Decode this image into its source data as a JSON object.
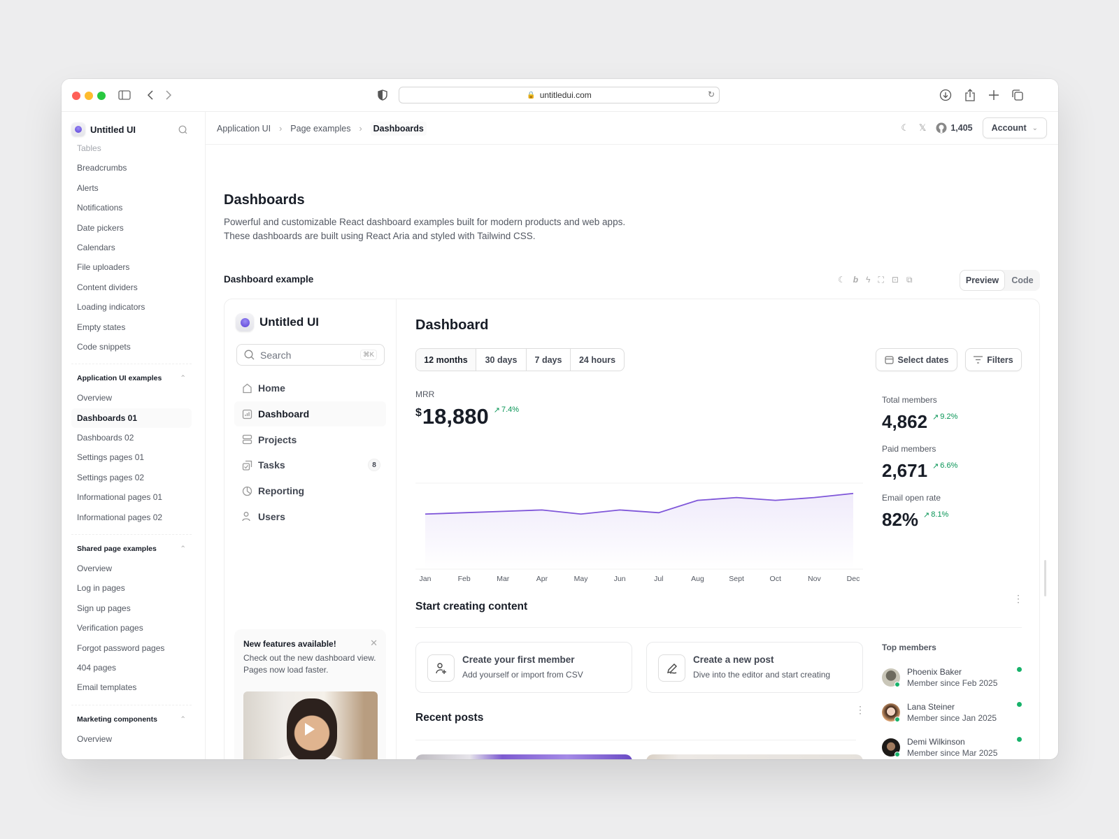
{
  "browser": {
    "url": "untitledui.com"
  },
  "sidebar": {
    "brand": "Untitled UI",
    "items": [
      "Tables",
      "Breadcrumbs",
      "Alerts",
      "Notifications",
      "Date pickers",
      "Calendars",
      "File uploaders",
      "Content dividers",
      "Loading indicators",
      "Empty states",
      "Code snippets"
    ],
    "sections": [
      {
        "title": "Application UI examples",
        "items": [
          "Overview",
          "Dashboards 01",
          "Dashboards 02",
          "Settings pages 01",
          "Settings pages 02",
          "Informational pages 01",
          "Informational pages 02"
        ],
        "active": "Dashboards 01"
      },
      {
        "title": "Shared page examples",
        "items": [
          "Overview",
          "Log in pages",
          "Sign up pages",
          "Verification pages",
          "Forgot password pages",
          "404 pages",
          "Email templates"
        ]
      },
      {
        "title": "Marketing components",
        "items": [
          "Overview"
        ]
      }
    ]
  },
  "breadcrumb": [
    "Application UI",
    "Page examples",
    "Dashboards"
  ],
  "header": {
    "github_stars": "1,405",
    "account_label": "Account"
  },
  "page": {
    "title": "Dashboards",
    "description_1": "Powerful and customizable React dashboard examples built for modern products and web apps.",
    "description_2": "These dashboards are built using React Aria and styled with Tailwind CSS.",
    "example_label": "Dashboard example",
    "preview_label": "Preview",
    "code_label": "Code"
  },
  "demo": {
    "brand": "Untitled UI",
    "search_placeholder": "Search",
    "search_shortcut": "⌘K",
    "nav": [
      {
        "label": "Home",
        "icon": "home-icon"
      },
      {
        "label": "Dashboard",
        "icon": "bar-chart-icon",
        "active": true
      },
      {
        "label": "Projects",
        "icon": "layers-icon"
      },
      {
        "label": "Tasks",
        "icon": "check-square-icon",
        "badge": "8"
      },
      {
        "label": "Reporting",
        "icon": "pie-chart-icon"
      },
      {
        "label": "Users",
        "icon": "users-icon"
      }
    ],
    "feature_card": {
      "title": "New features available!",
      "text": "Check out the new dashboard view. Pages now load faster."
    },
    "title": "Dashboard",
    "ranges": [
      "12 months",
      "30 days",
      "7 days",
      "24 hours"
    ],
    "selected_range": "12 months",
    "select_dates_label": "Select dates",
    "filters_label": "Filters",
    "mrr": {
      "label": "MRR",
      "currency": "$",
      "value": "18,880",
      "delta": "7.4%"
    },
    "stats": [
      {
        "label": "Total members",
        "value": "4,862",
        "delta": "9.2%"
      },
      {
        "label": "Paid members",
        "value": "2,671",
        "delta": "6.6%"
      },
      {
        "label": "Email open rate",
        "value": "82%",
        "delta": "8.1%"
      }
    ],
    "start_title": "Start creating content",
    "actions": [
      {
        "title": "Create your first member",
        "desc": "Add yourself or import from CSV",
        "icon": "user-plus-icon"
      },
      {
        "title": "Create a new post",
        "desc": "Dive into the editor and start creating",
        "icon": "pen-icon"
      }
    ],
    "top_members_title": "Top members",
    "members": [
      {
        "name": "Phoenix Baker",
        "since": "Member since Feb 2025"
      },
      {
        "name": "Lana Steiner",
        "since": "Member since Jan 2025"
      },
      {
        "name": "Demi Wilkinson",
        "since": "Member since Mar 2025"
      }
    ],
    "recent_title": "Recent posts"
  },
  "colors": {
    "accent": "#7f56d9",
    "positive": "#079455",
    "online": "#17b26a"
  },
  "chart_data": {
    "type": "area",
    "categories": [
      "Jan",
      "Feb",
      "Mar",
      "Apr",
      "May",
      "Jun",
      "Jul",
      "Aug",
      "Sept",
      "Oct",
      "Nov",
      "Dec"
    ],
    "values": [
      80,
      82,
      84,
      86,
      80,
      86,
      82,
      100,
      104,
      100,
      104,
      110
    ],
    "ylim": [
      0,
      125
    ],
    "grid": true,
    "title": "",
    "xlabel": "",
    "ylabel": ""
  }
}
